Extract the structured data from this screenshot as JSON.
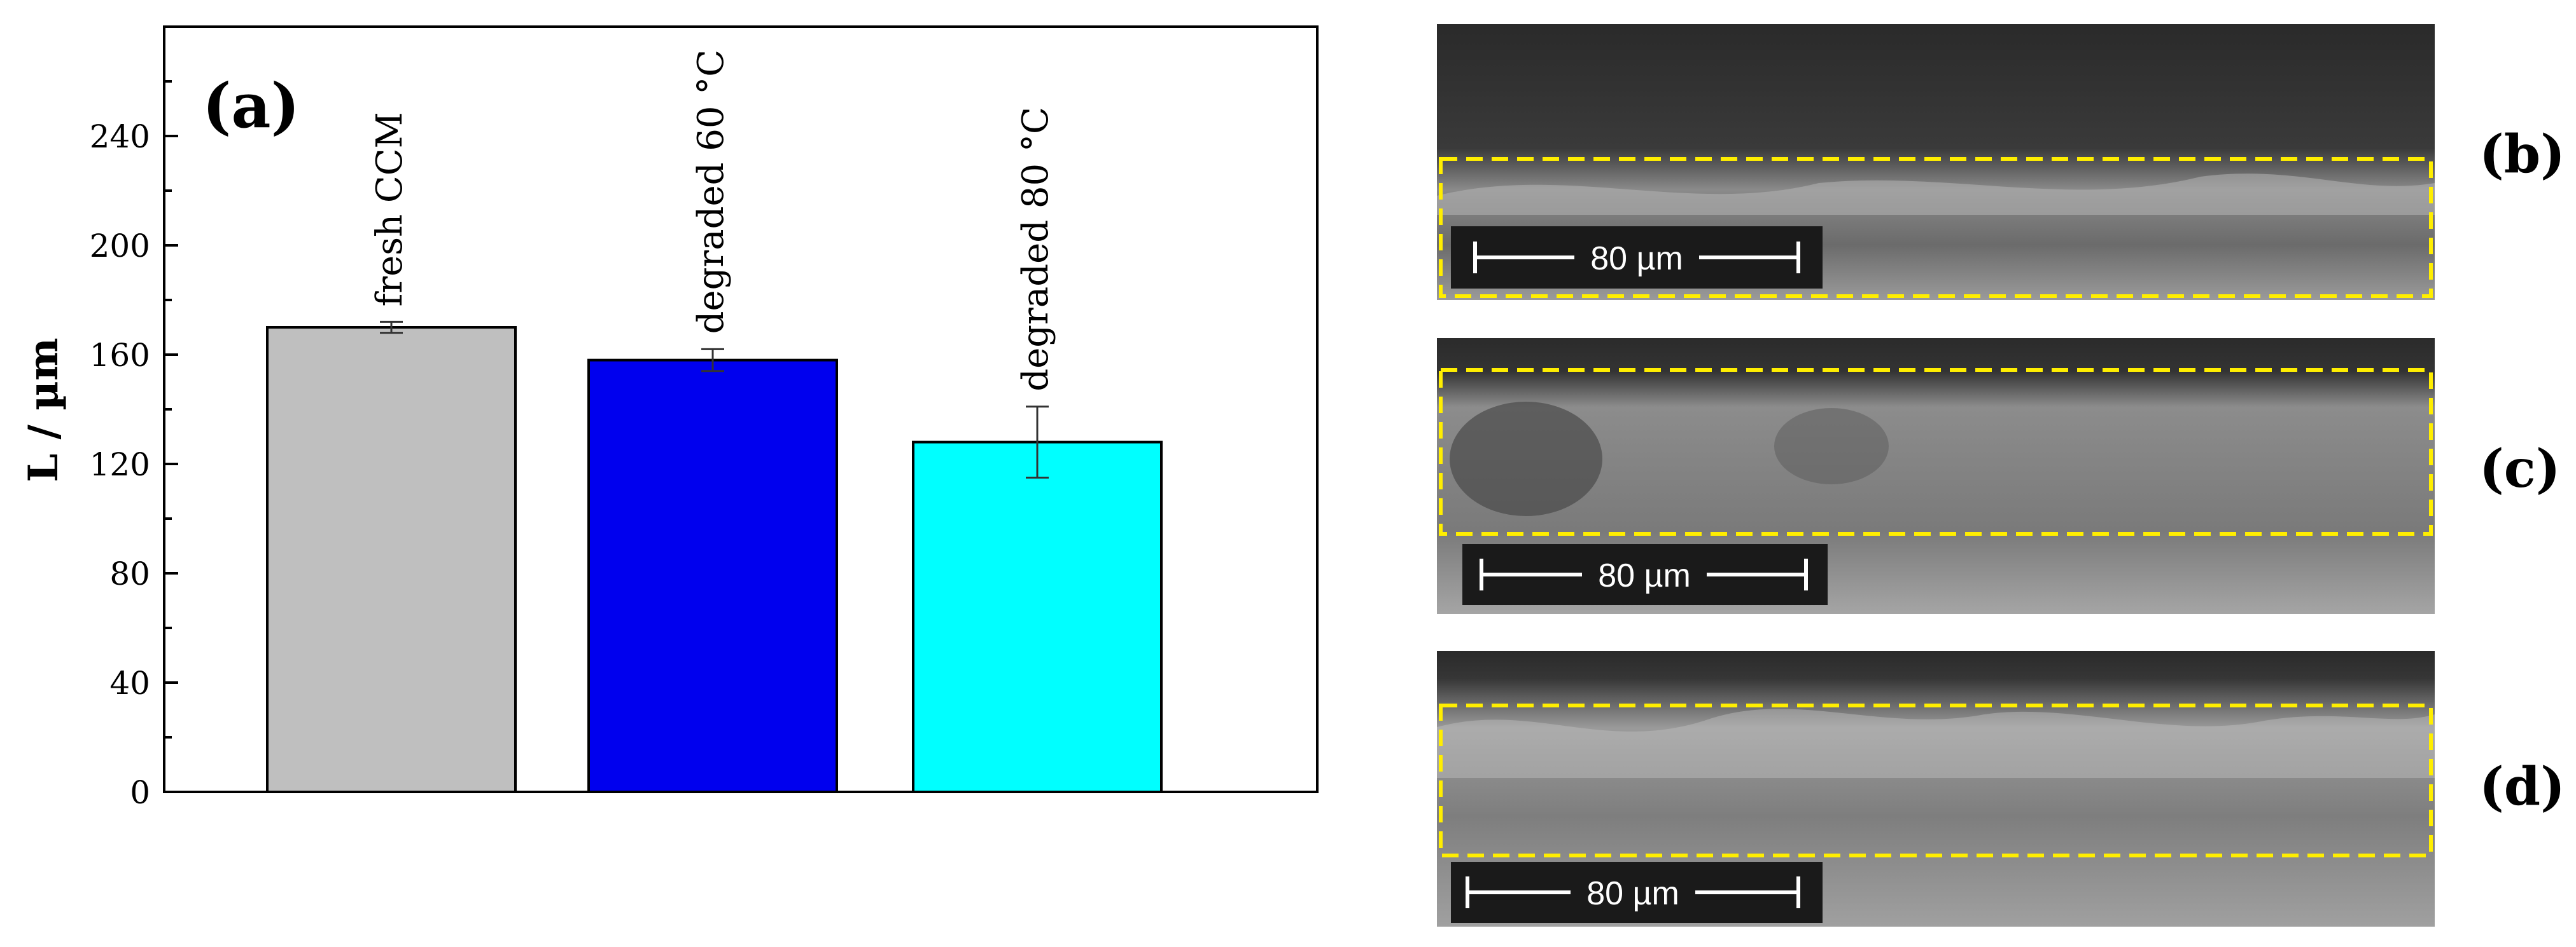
{
  "chart_data": {
    "type": "bar",
    "panel_label": "(a)",
    "ylabel": "L / µm",
    "xlabel": "",
    "ylim": [
      0,
      280
    ],
    "yticks": [
      0,
      40,
      80,
      120,
      160,
      200,
      240
    ],
    "yticks_minor_step": 20,
    "grid": false,
    "categories": [
      "fresh CCM",
      "degraded 60 °C",
      "degraded 80 °C"
    ],
    "values": [
      170,
      158,
      128
    ],
    "errors": [
      2,
      4,
      13
    ],
    "colors": [
      "#bfbfbf",
      "#0000ee",
      "#00ffff"
    ]
  },
  "sem_images": [
    {
      "label": "(b)",
      "scale_bar": "80 µm"
    },
    {
      "label": "(c)",
      "scale_bar": "80 µm"
    },
    {
      "label": "(d)",
      "scale_bar": "80 µm"
    }
  ]
}
